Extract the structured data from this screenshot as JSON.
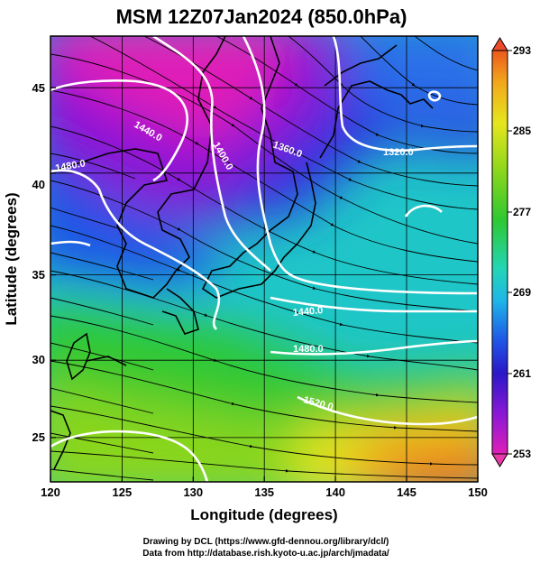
{
  "title": "MSM 12Z07Jan2024 (850.0hPa)",
  "xaxis": {
    "label": "Longitude (degrees)",
    "ticks": [
      "120",
      "125",
      "130",
      "135",
      "140",
      "145",
      "150"
    ],
    "range": [
      120,
      150
    ]
  },
  "yaxis": {
    "label": "Latitude  (degrees)",
    "ticks": [
      "25",
      "30",
      "35",
      "40",
      "45"
    ],
    "range": [
      22.4,
      47.6
    ]
  },
  "colorbar": {
    "ticks": [
      "293",
      "285",
      "277",
      "269",
      "261",
      "253"
    ],
    "range": [
      253,
      293
    ],
    "colors": [
      "#e01fb8",
      "#8a18d6",
      "#2a18c8",
      "#1f55e6",
      "#1fb6e8",
      "#22d6b4",
      "#2ec832",
      "#8ad61c",
      "#e6e61e",
      "#f2a81c",
      "#ec5a1c"
    ]
  },
  "contours": [
    {
      "label": "1440.0"
    },
    {
      "label": "1400.0"
    },
    {
      "label": "1360.0"
    },
    {
      "label": "1480.0"
    },
    {
      "label": "1320.0"
    },
    {
      "label": "1440.0"
    },
    {
      "label": "1480.0"
    },
    {
      "label": "1520.0"
    }
  ],
  "credits": [
    "Drawing by DCL (https://www.gfd-dennou.org/library/dcl/)",
    "Data from http://database.rish.kyoto-u.ac.jp/arch/jmadata/"
  ]
}
